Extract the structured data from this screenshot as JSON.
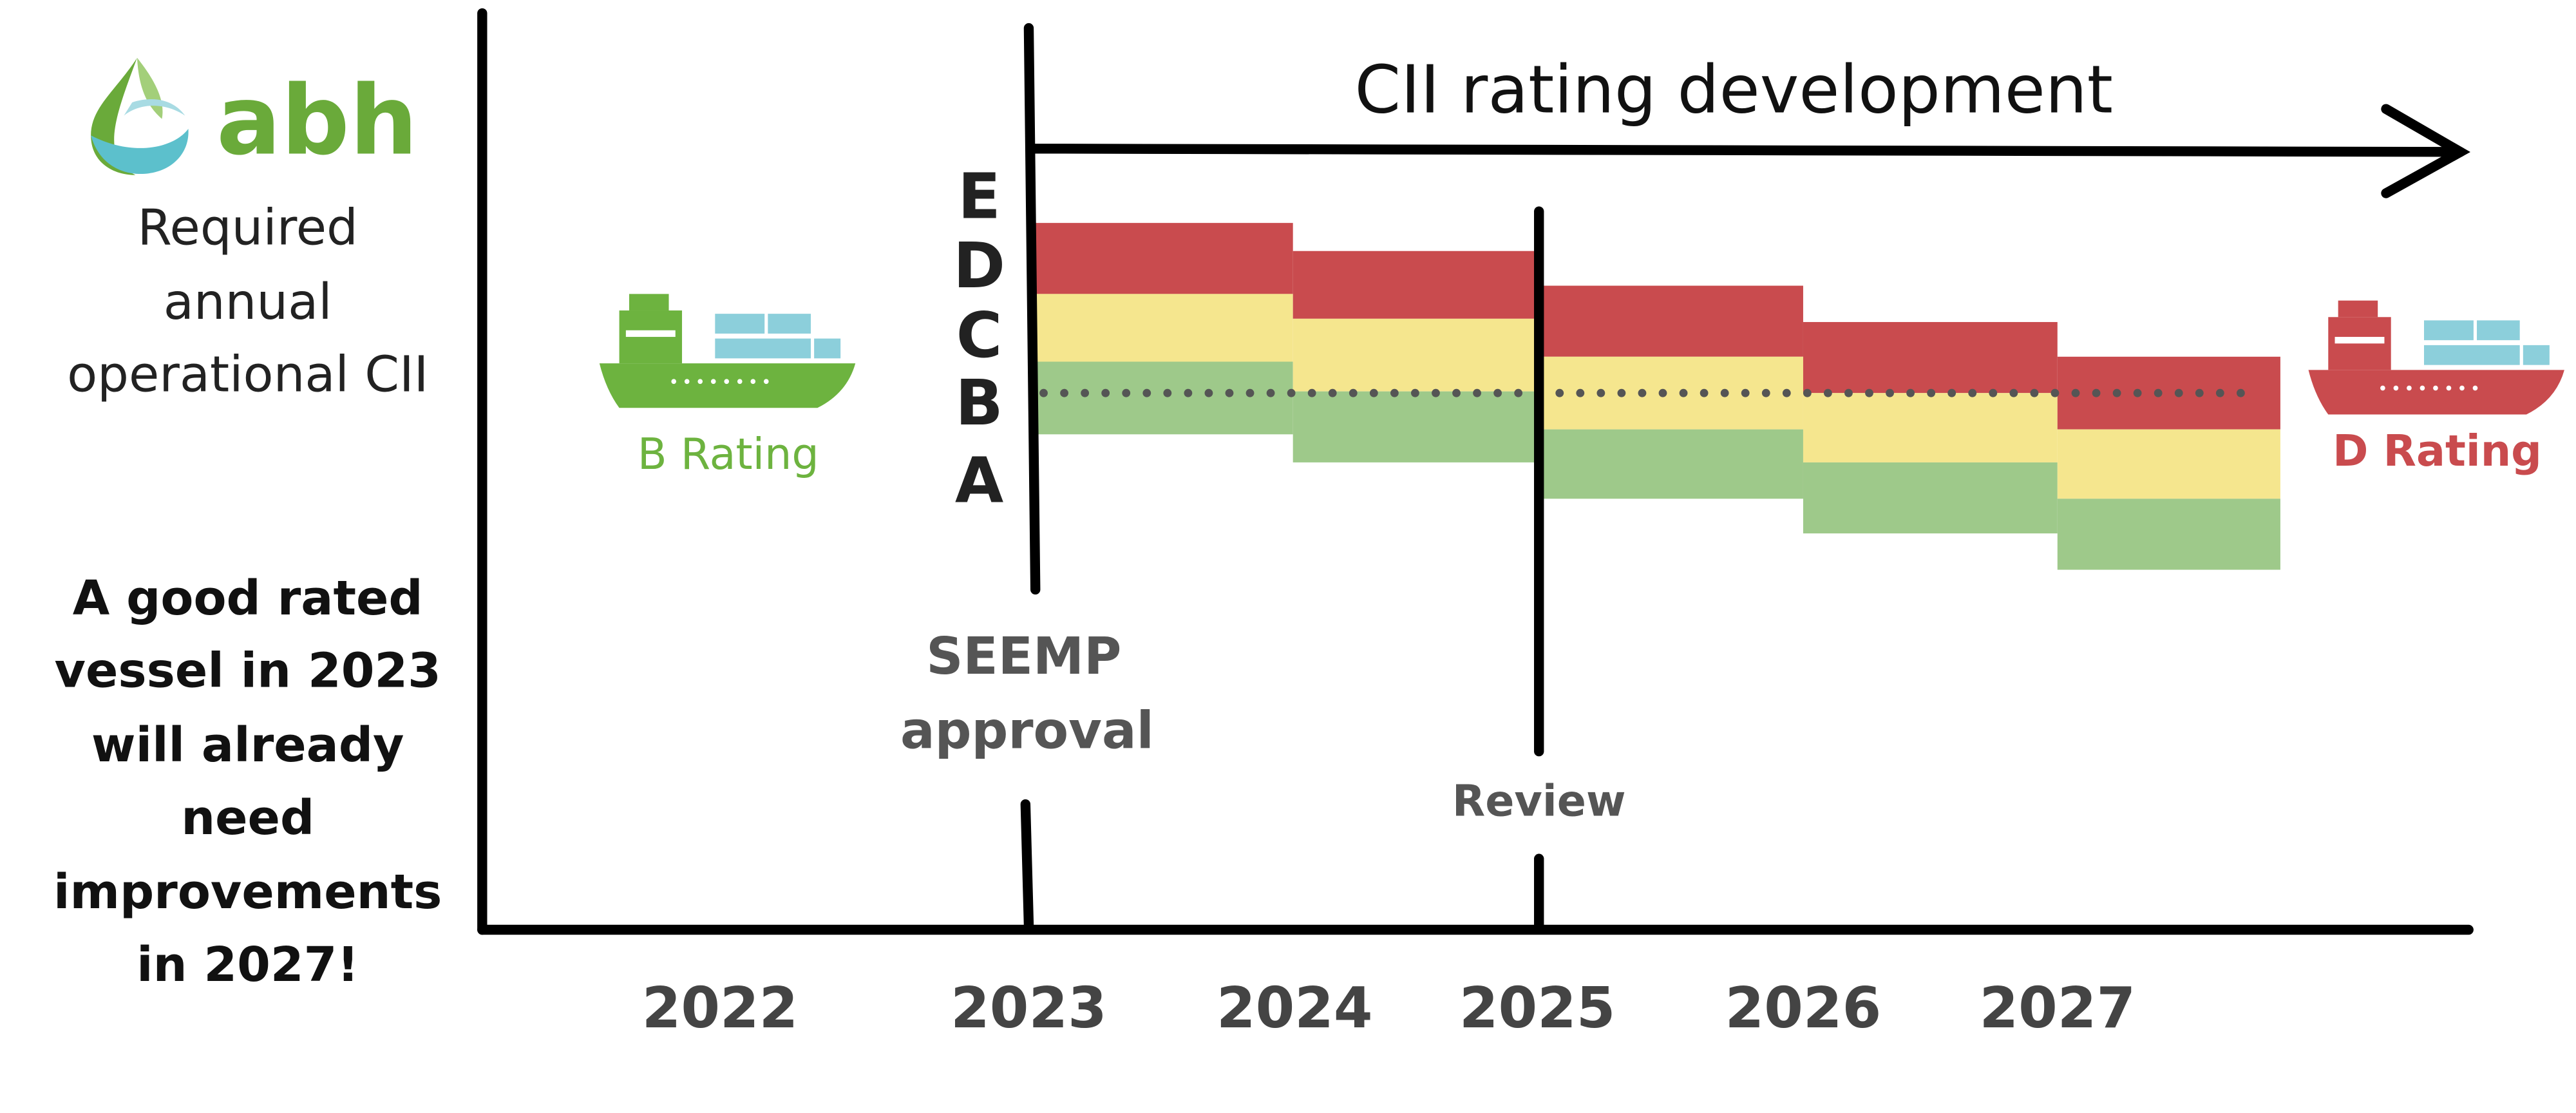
{
  "logo": {
    "text": "abh"
  },
  "header": {
    "lines": [
      "Required",
      "annual",
      "operational CII"
    ]
  },
  "note": {
    "lines": [
      "A good rated",
      "vessel in 2023",
      "will already",
      "need",
      "improvements",
      "in 2027!"
    ]
  },
  "title": "CII rating development",
  "rating_letters": [
    "E",
    "D",
    "C",
    "B",
    "A"
  ],
  "ships": [
    {
      "label": "B Rating"
    },
    {
      "label": "D Rating"
    }
  ],
  "milestones": [
    {
      "lines": [
        "SEEMP",
        "approval"
      ]
    },
    {
      "lines": [
        "Review"
      ]
    }
  ],
  "years": [
    "2022",
    "2023",
    "2024",
    "2025",
    "2026",
    "2027"
  ]
}
